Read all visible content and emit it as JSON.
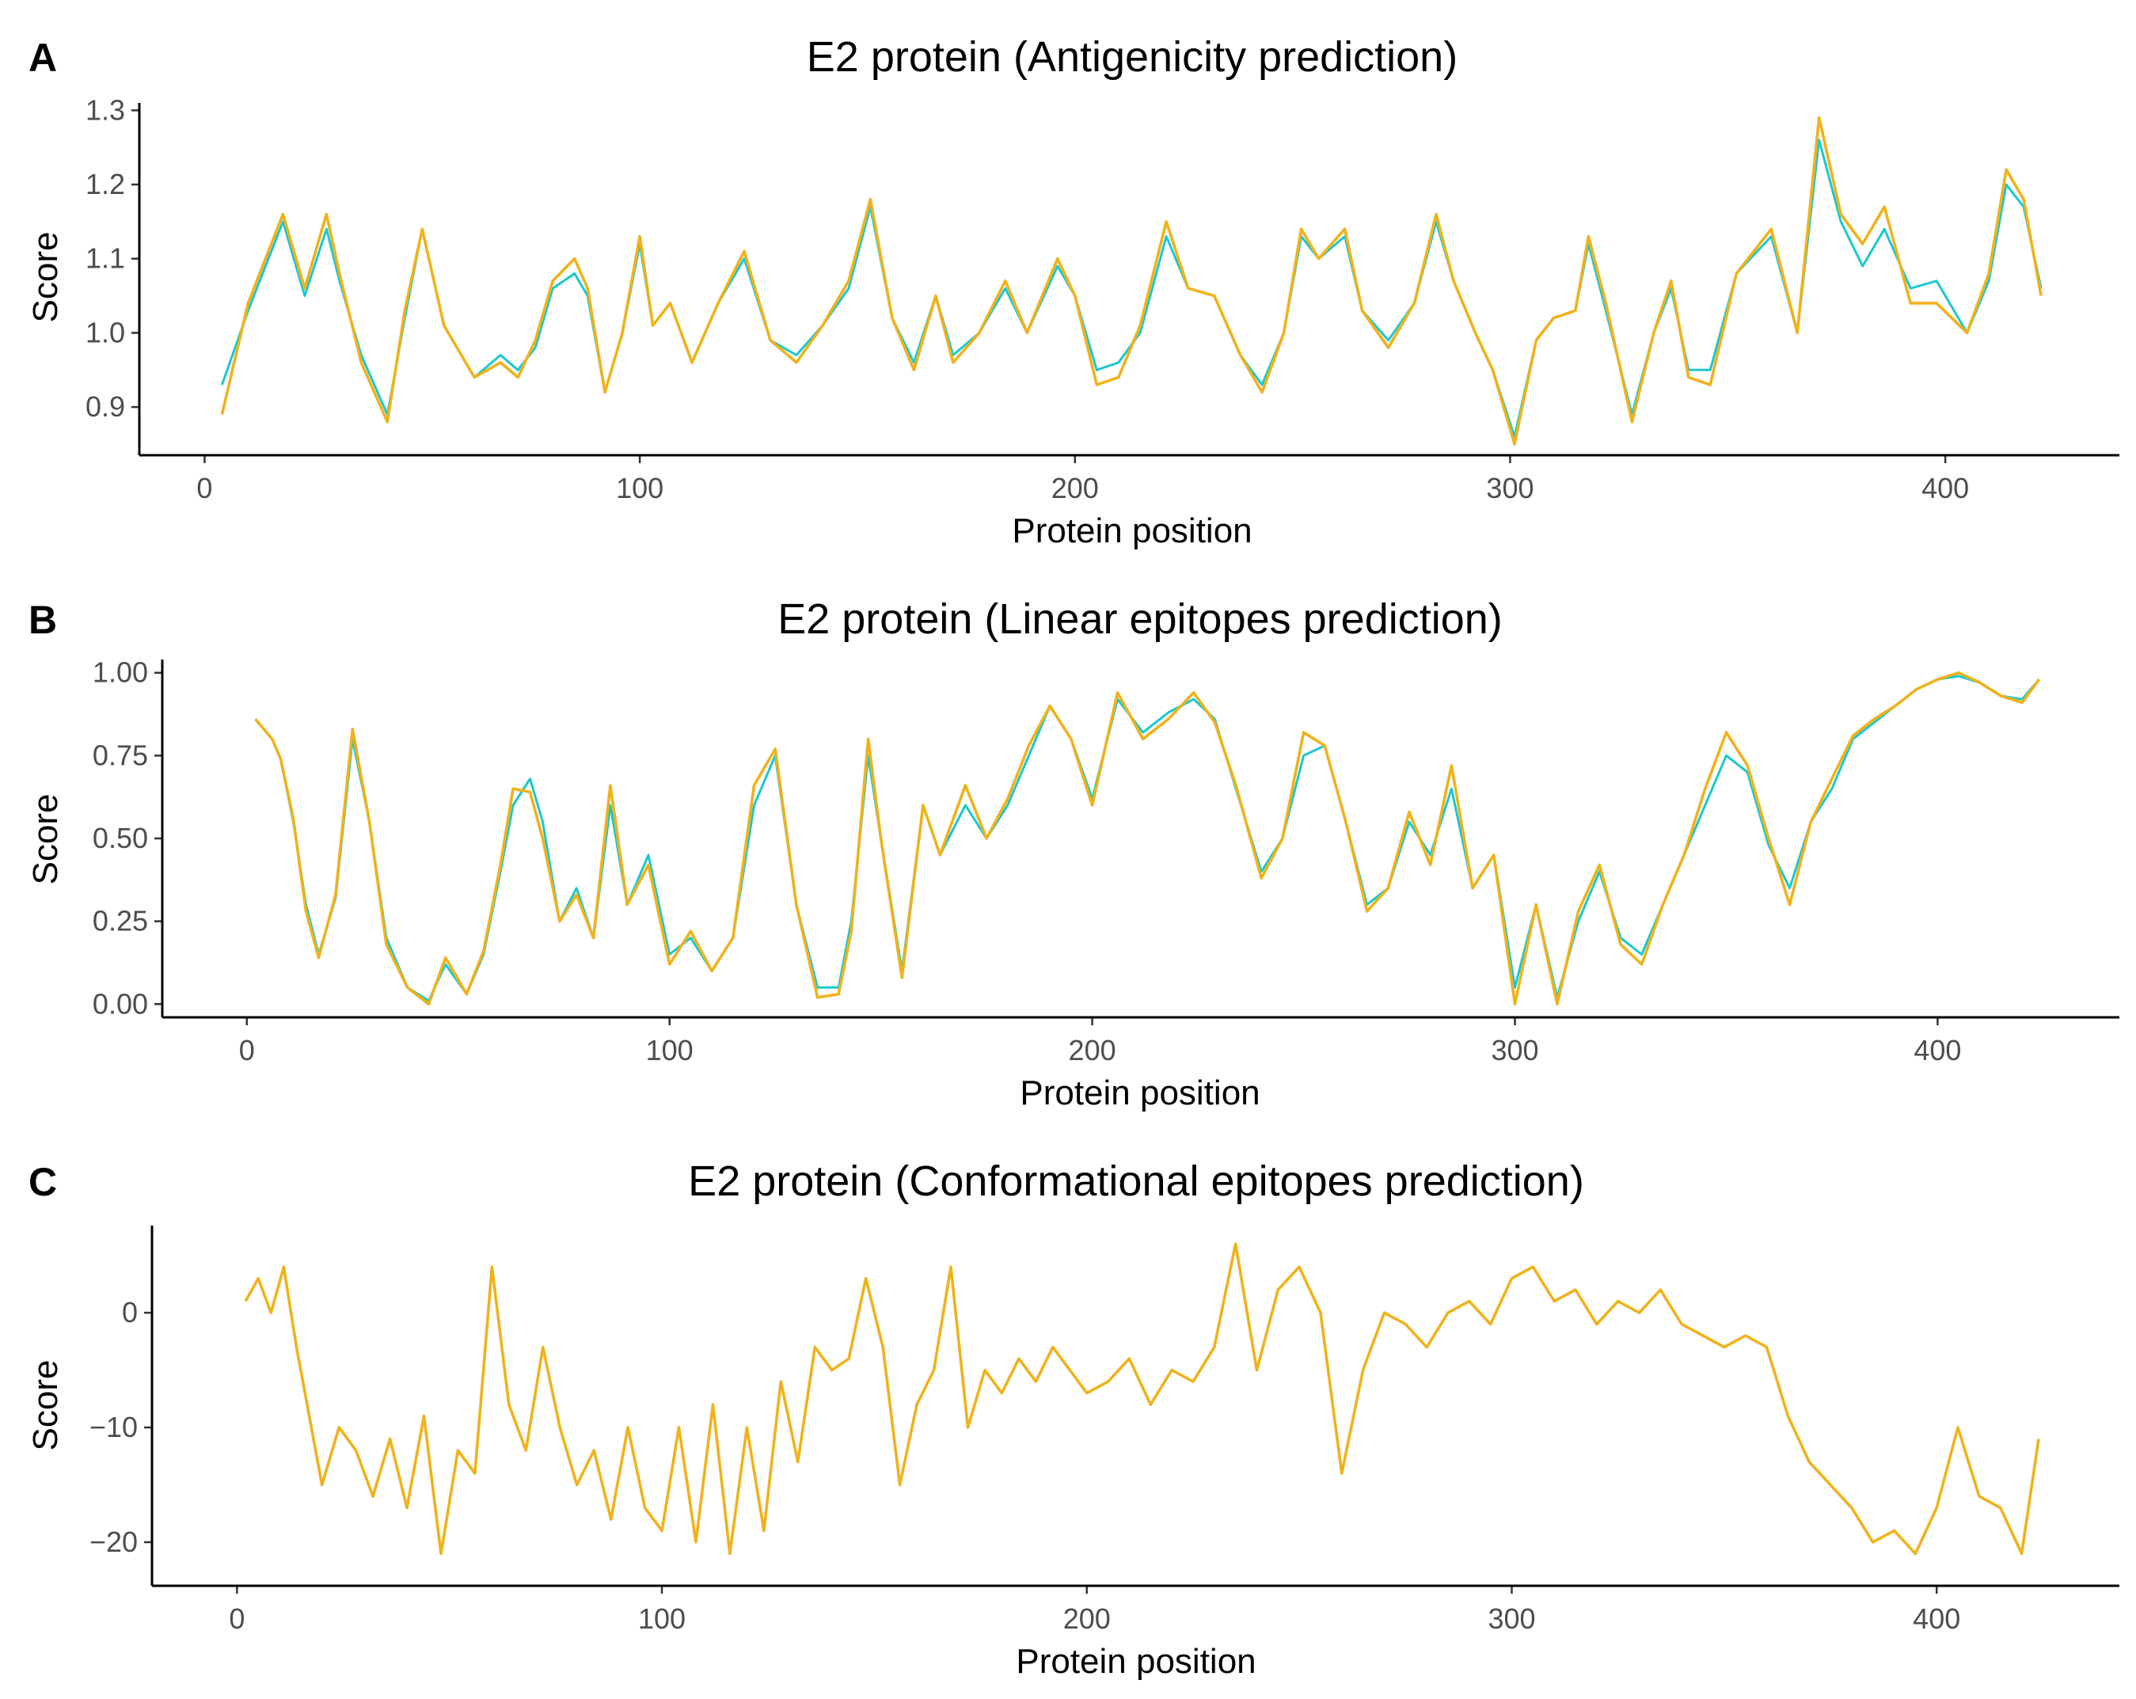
{
  "figure": {
    "panels": [
      "A",
      "B",
      "C"
    ]
  },
  "chart_data": [
    {
      "panel": "A",
      "type": "line",
      "title": "E2 protein (Antigenicity prediction)",
      "xlabel": "Protein position",
      "ylabel": "Score",
      "xlim": [
        -15,
        440
      ],
      "ylim": [
        0.835,
        1.31
      ],
      "xticks": [
        0,
        100,
        200,
        300,
        400
      ],
      "yticks": [
        0.9,
        1.0,
        1.1,
        1.2,
        1.3
      ],
      "ytick_labels": [
        "0.9",
        "1.0",
        "1.1",
        "1.2",
        "1.3"
      ],
      "colors": {
        "cyan": "#1ac8d0",
        "gold": "#f0b21c"
      },
      "series": [
        {
          "name": "cyan",
          "color": "#1ac8d0",
          "x": [
            4,
            10,
            18,
            23,
            28,
            31,
            36,
            42,
            46,
            50,
            55,
            62,
            68,
            72,
            76,
            80,
            85,
            88,
            92,
            96,
            100,
            103,
            107,
            112,
            118,
            124,
            130,
            136,
            142,
            148,
            153,
            158,
            163,
            168,
            172,
            178,
            184,
            189,
            196,
            200,
            205,
            210,
            215,
            221,
            226,
            232,
            238,
            243,
            248,
            252,
            256,
            262,
            266,
            272,
            278,
            283,
            287,
            292,
            296,
            301,
            306,
            310,
            315,
            318,
            322,
            328,
            333,
            337,
            341,
            346,
            352,
            360,
            366,
            371,
            376,
            381,
            386,
            392,
            398,
            405,
            410,
            414,
            418,
            422
          ],
          "y": [
            0.93,
            1.03,
            1.15,
            1.05,
            1.14,
            1.07,
            0.97,
            0.89,
            1.02,
            1.14,
            1.01,
            0.94,
            0.97,
            0.95,
            0.98,
            1.06,
            1.08,
            1.05,
            0.92,
            1.0,
            1.12,
            1.01,
            1.04,
            0.96,
            1.04,
            1.1,
            0.99,
            0.97,
            1.01,
            1.06,
            1.17,
            1.02,
            0.96,
            1.05,
            0.97,
            1.0,
            1.06,
            1.0,
            1.09,
            1.05,
            0.95,
            0.96,
            1.0,
            1.13,
            1.06,
            1.05,
            0.97,
            0.93,
            1.0,
            1.13,
            1.1,
            1.13,
            1.03,
            0.99,
            1.04,
            1.15,
            1.07,
            1.0,
            0.95,
            0.86,
            0.99,
            1.02,
            1.03,
            1.12,
            1.03,
            0.89,
            1.0,
            1.06,
            0.95,
            0.95,
            1.08,
            1.13,
            1.0,
            1.26,
            1.15,
            1.09,
            1.14,
            1.06,
            1.07,
            1.0,
            1.07,
            1.2,
            1.17,
            1.06
          ]
        },
        {
          "name": "gold",
          "color": "#f0b21c",
          "x": [
            4,
            10,
            18,
            23,
            28,
            31,
            36,
            42,
            46,
            50,
            55,
            62,
            68,
            72,
            76,
            80,
            85,
            88,
            92,
            96,
            100,
            103,
            107,
            112,
            118,
            124,
            130,
            136,
            142,
            148,
            153,
            158,
            163,
            168,
            172,
            178,
            184,
            189,
            196,
            200,
            205,
            210,
            215,
            221,
            226,
            232,
            238,
            243,
            248,
            252,
            256,
            262,
            266,
            272,
            278,
            283,
            287,
            292,
            296,
            301,
            306,
            310,
            315,
            318,
            322,
            328,
            333,
            337,
            341,
            346,
            352,
            360,
            366,
            371,
            376,
            381,
            386,
            392,
            398,
            405,
            410,
            414,
            418,
            422
          ],
          "y": [
            0.89,
            1.04,
            1.16,
            1.06,
            1.16,
            1.08,
            0.96,
            0.88,
            1.03,
            1.14,
            1.01,
            0.94,
            0.96,
            0.94,
            0.99,
            1.07,
            1.1,
            1.06,
            0.92,
            1.0,
            1.13,
            1.01,
            1.04,
            0.96,
            1.04,
            1.11,
            0.99,
            0.96,
            1.01,
            1.07,
            1.18,
            1.02,
            0.95,
            1.05,
            0.96,
            1.0,
            1.07,
            1.0,
            1.1,
            1.05,
            0.93,
            0.94,
            1.01,
            1.15,
            1.06,
            1.05,
            0.97,
            0.92,
            1.0,
            1.14,
            1.1,
            1.14,
            1.03,
            0.98,
            1.04,
            1.16,
            1.07,
            1.0,
            0.95,
            0.85,
            0.99,
            1.02,
            1.03,
            1.13,
            1.04,
            0.88,
            1.0,
            1.07,
            0.94,
            0.93,
            1.08,
            1.14,
            1.0,
            1.29,
            1.16,
            1.12,
            1.17,
            1.04,
            1.04,
            1.0,
            1.08,
            1.22,
            1.18,
            1.05
          ]
        }
      ]
    },
    {
      "panel": "B",
      "type": "line",
      "title": "E2 protein (Linear epitopes prediction)",
      "xlabel": "Protein position",
      "ylabel": "Score",
      "xlim": [
        -20,
        443
      ],
      "ylim": [
        -0.04,
        1.04
      ],
      "xticks": [
        0,
        100,
        200,
        300,
        400
      ],
      "yticks": [
        0.0,
        0.25,
        0.5,
        0.75,
        1.0
      ],
      "ytick_labels": [
        "0.00",
        "0.25",
        "0.50",
        "0.75",
        "1.00"
      ],
      "colors": {
        "cyan": "#1ac8d0",
        "gold": "#f0b21c"
      },
      "series": [
        {
          "name": "cyan",
          "color": "#1ac8d0",
          "x": [
            2,
            6,
            8,
            11,
            14,
            17,
            21,
            25,
            29,
            33,
            38,
            43,
            47,
            52,
            56,
            60,
            63,
            67,
            70,
            74,
            78,
            82,
            86,
            90,
            95,
            100,
            105,
            110,
            115,
            120,
            125,
            130,
            135,
            140,
            143,
            147,
            150,
            155,
            160,
            164,
            170,
            175,
            180,
            185,
            190,
            195,
            200,
            206,
            212,
            218,
            224,
            229,
            234,
            240,
            245,
            250,
            255,
            260,
            265,
            270,
            275,
            280,
            285,
            290,
            295,
            300,
            305,
            310,
            315,
            320,
            325,
            330,
            335,
            340,
            345,
            350,
            355,
            360,
            365,
            370,
            375,
            380,
            385,
            390,
            395,
            400,
            405,
            410,
            415,
            420,
            424
          ],
          "y": [
            0.86,
            0.8,
            0.74,
            0.55,
            0.3,
            0.15,
            0.32,
            0.8,
            0.55,
            0.2,
            0.05,
            0.01,
            0.12,
            0.03,
            0.15,
            0.4,
            0.6,
            0.68,
            0.55,
            0.25,
            0.35,
            0.2,
            0.6,
            0.3,
            0.45,
            0.15,
            0.2,
            0.1,
            0.2,
            0.6,
            0.75,
            0.3,
            0.05,
            0.05,
            0.25,
            0.75,
            0.5,
            0.1,
            0.6,
            0.45,
            0.6,
            0.5,
            0.6,
            0.75,
            0.9,
            0.8,
            0.62,
            0.92,
            0.82,
            0.88,
            0.92,
            0.86,
            0.65,
            0.4,
            0.5,
            0.75,
            0.78,
            0.55,
            0.3,
            0.35,
            0.55,
            0.45,
            0.65,
            0.35,
            0.45,
            0.05,
            0.3,
            0.02,
            0.25,
            0.4,
            0.2,
            0.15,
            0.3,
            0.45,
            0.6,
            0.75,
            0.7,
            0.48,
            0.35,
            0.55,
            0.65,
            0.8,
            0.85,
            0.9,
            0.95,
            0.98,
            0.99,
            0.97,
            0.93,
            0.92,
            0.98
          ]
        },
        {
          "name": "gold",
          "color": "#f0b21c",
          "x": [
            2,
            6,
            8,
            11,
            14,
            17,
            21,
            25,
            29,
            33,
            38,
            43,
            47,
            52,
            56,
            60,
            63,
            67,
            70,
            74,
            78,
            82,
            86,
            90,
            95,
            100,
            105,
            110,
            115,
            120,
            125,
            130,
            135,
            140,
            143,
            147,
            150,
            155,
            160,
            164,
            170,
            175,
            180,
            185,
            190,
            195,
            200,
            206,
            212,
            218,
            224,
            229,
            234,
            240,
            245,
            250,
            255,
            260,
            265,
            270,
            275,
            280,
            285,
            290,
            295,
            300,
            305,
            310,
            315,
            320,
            325,
            330,
            335,
            340,
            345,
            350,
            355,
            360,
            365,
            370,
            375,
            380,
            385,
            390,
            395,
            400,
            405,
            410,
            415,
            420,
            424
          ],
          "y": [
            0.86,
            0.8,
            0.74,
            0.56,
            0.28,
            0.14,
            0.33,
            0.83,
            0.55,
            0.18,
            0.05,
            0.0,
            0.14,
            0.03,
            0.16,
            0.42,
            0.65,
            0.64,
            0.5,
            0.25,
            0.33,
            0.2,
            0.66,
            0.3,
            0.42,
            0.12,
            0.22,
            0.1,
            0.2,
            0.66,
            0.77,
            0.3,
            0.02,
            0.03,
            0.22,
            0.8,
            0.5,
            0.08,
            0.6,
            0.45,
            0.66,
            0.5,
            0.62,
            0.78,
            0.9,
            0.8,
            0.6,
            0.94,
            0.8,
            0.86,
            0.94,
            0.85,
            0.66,
            0.38,
            0.5,
            0.82,
            0.78,
            0.55,
            0.28,
            0.35,
            0.58,
            0.42,
            0.72,
            0.35,
            0.45,
            0.0,
            0.3,
            0.0,
            0.28,
            0.42,
            0.18,
            0.12,
            0.3,
            0.45,
            0.65,
            0.82,
            0.72,
            0.5,
            0.3,
            0.55,
            0.68,
            0.81,
            0.86,
            0.9,
            0.95,
            0.98,
            1.0,
            0.97,
            0.93,
            0.91,
            0.98
          ]
        }
      ]
    },
    {
      "panel": "C",
      "type": "line",
      "title": "E2 protein (Conformational epitopes prediction)",
      "xlabel": "Protein position",
      "ylabel": "Score",
      "xlim": [
        -20,
        443
      ],
      "ylim": [
        -23.8,
        7.6
      ],
      "xticks": [
        0,
        100,
        200,
        300,
        400
      ],
      "yticks": [
        0,
        -10,
        -20
      ],
      "ytick_labels": [
        "0",
        "−10",
        "−20"
      ],
      "colors": {
        "gold": "#f0b21c"
      },
      "series": [
        {
          "name": "gold",
          "color": "#f0b21c",
          "x": [
            2,
            5,
            8,
            11,
            14,
            17,
            20,
            24,
            28,
            32,
            36,
            40,
            44,
            48,
            52,
            56,
            60,
            64,
            68,
            72,
            76,
            80,
            84,
            88,
            92,
            96,
            100,
            104,
            108,
            112,
            116,
            120,
            124,
            128,
            132,
            136,
            140,
            144,
            148,
            152,
            156,
            160,
            164,
            168,
            172,
            176,
            180,
            184,
            188,
            192,
            196,
            200,
            205,
            210,
            215,
            220,
            225,
            230,
            235,
            240,
            245,
            250,
            255,
            260,
            265,
            270,
            275,
            280,
            285,
            290,
            295,
            300,
            305,
            310,
            315,
            320,
            325,
            330,
            335,
            340,
            345,
            350,
            355,
            360,
            365,
            370,
            375,
            380,
            385,
            390,
            395,
            400,
            405,
            410,
            415,
            420,
            424
          ],
          "y": [
            1,
            3,
            0,
            4,
            -3,
            -9,
            -15,
            -10,
            -12,
            -16,
            -11,
            -17,
            -9,
            -21,
            -12,
            -14,
            4,
            -8,
            -12,
            -3,
            -10,
            -15,
            -12,
            -18,
            -10,
            -17,
            -19,
            -10,
            -20,
            -8,
            -21,
            -10,
            -19,
            -6,
            -13,
            -3,
            -5,
            -4,
            3,
            -3,
            -15,
            -8,
            -5,
            4,
            -10,
            -5,
            -7,
            -4,
            -6,
            -3,
            -5,
            -7,
            -6,
            -4,
            -8,
            -5,
            -6,
            -3,
            6,
            -5,
            2,
            4,
            0,
            -14,
            -5,
            0,
            -1,
            -3,
            0,
            1,
            -1,
            3,
            4,
            1,
            2,
            -1,
            1,
            0,
            2,
            -1,
            -2,
            -3,
            -2,
            -3,
            -9,
            -13,
            -15,
            -17,
            -20,
            -19,
            -21,
            -17,
            -10,
            -16,
            -17,
            -21,
            -11
          ]
        }
      ]
    }
  ]
}
